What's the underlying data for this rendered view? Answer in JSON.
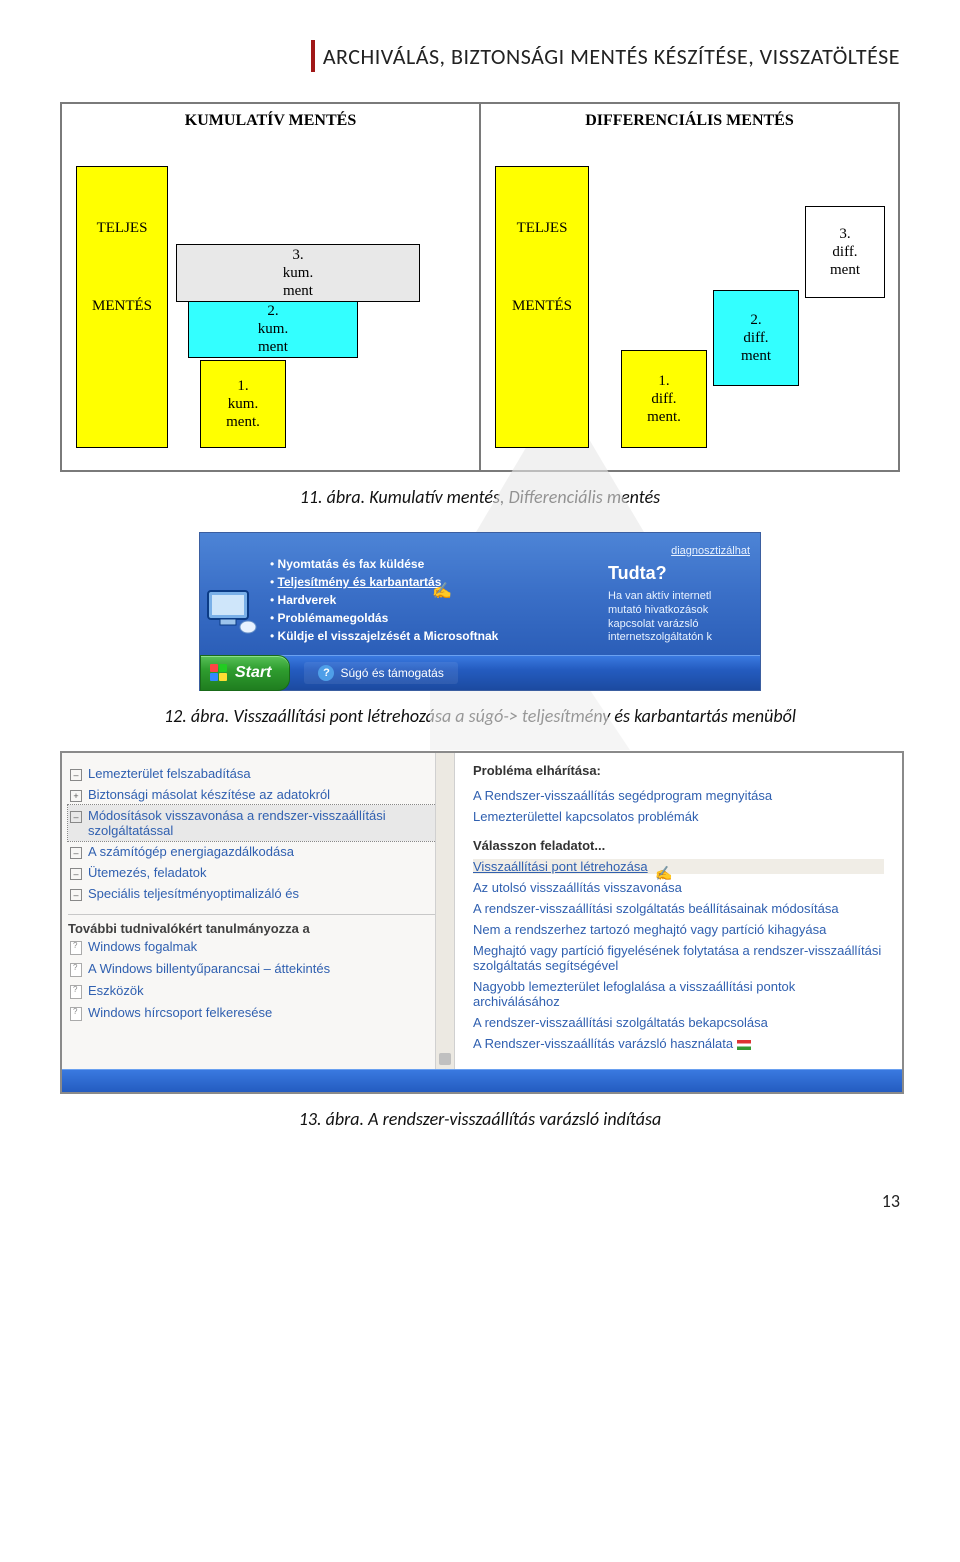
{
  "header": {
    "title": "ARCHIVÁLÁS, BIZTONSÁGI MENTÉS KÉSZÍTÉSE, VISSZATÖLTÉSE",
    "red_bar_color": "#a01818"
  },
  "fig11": {
    "caption": "11. ábra. Kumulatív mentés, Differenciális mentés",
    "panel_left_title": "KUMULATÍV MENTÉS",
    "panel_right_title": "DIFFERENCIÁLIS MENTÉS",
    "teljes": "TELJES",
    "mentes": "MENTÉS",
    "kum1": "1.\nkum.\nment.",
    "kum2": "2.\nkum.\nment",
    "kum3": "3.\nkum.\nment",
    "diff1": "1.\ndiff.\nment.",
    "diff2": "2.\ndiff.\nment",
    "diff3": "3.\ndiff.\nment",
    "colors": {
      "yellow": "#ffff00",
      "cyan": "#33ffff",
      "grey": "#e8e8e8",
      "white": "#ffffff",
      "border": "#000000"
    }
  },
  "fig12": {
    "caption": "12. ábra. Visszaállítási pont létrehozása a súgó-> teljesítmény és karbantartás menüből",
    "diag": "diagnosztizálhat",
    "items": [
      "Nyomtatás és fax küldése",
      "Teljesítmény és karbantartás",
      "Hardverek",
      "Problémamegoldás",
      "Küldje el visszajelzését a Microsoftnak"
    ],
    "selected_index": 1,
    "tudta_title": "Tudta?",
    "tudta_body": "Ha van aktív internetl\nmutató hivatkozások\nkapcsolat varázsló\ninternetszolgáltatón k",
    "start": "Start",
    "task": "Súgó és támogatás"
  },
  "fig13": {
    "caption": "13. ábra. A rendszer-visszaállítás varázsló indítása",
    "left_items": [
      {
        "icon": "minus",
        "text": "Lemezterület felszabadítása"
      },
      {
        "icon": "plus",
        "text": "Biztonsági másolat készítése az adatokról"
      },
      {
        "icon": "minus",
        "text": "Módosítások visszavonása a rendszer-visszaállítási szolgáltatással",
        "selected": true
      },
      {
        "icon": "minus",
        "text": "A számítógép energiagazdálkodása"
      },
      {
        "icon": "minus",
        "text": "Ütemezés, feladatok"
      },
      {
        "icon": "minus",
        "text": "Speciális teljesítményoptimalizáló és"
      }
    ],
    "left_subtitle": "További tudnivalókért tanulmányozza a",
    "left_docs": [
      "Windows fogalmak",
      "A Windows billentyűparancsai – áttekintés",
      "Eszközök",
      "Windows hírcsoport felkeresése"
    ],
    "right_h1": "Probléma elhárítása:",
    "right_top_links": [
      "A Rendszer-visszaállítás segédprogram megnyitása",
      "Lemezterülettel kapcsolatos problémák"
    ],
    "right_h2": "Válasszon feladatot...",
    "right_tasks": [
      {
        "text": "Visszaállítási pont létrehozása",
        "selected": true
      },
      {
        "text": "Az utolsó visszaállítás visszavonása"
      },
      {
        "text": "A rendszer-visszaállítási szolgáltatás beállításainak módosítása"
      },
      {
        "text": "Nem a rendszerhez tartozó meghajtó vagy partíció kihagyása"
      },
      {
        "text": "Meghajtó vagy partíció figyelésének folytatása a rendszer-visszaállítási szolgáltatás segítségével"
      },
      {
        "text": "Nagyobb lemezterület lefoglalása a visszaállítási pontok archiválásához"
      },
      {
        "text": "A rendszer-visszaállítási szolgáltatás bekapcsolása"
      },
      {
        "text": "A Rendszer-visszaállítás varázsló használata",
        "flag": true
      }
    ]
  },
  "page_number": "13"
}
